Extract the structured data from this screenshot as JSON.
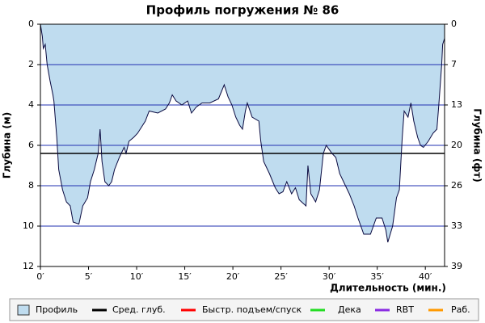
{
  "chart_data": {
    "type": "area",
    "title": "Профиль погружения № 86",
    "x_label": "Длительность (мин.)",
    "y_label": "Глубина (м)",
    "y2_label": "Глубина (фт)",
    "xlim": [
      0,
      42
    ],
    "ylim": [
      0,
      12
    ],
    "y2lim": [
      0,
      39.37
    ],
    "inverted_y": true,
    "grid": true,
    "xticks": [
      {
        "value": 0,
        "label": "0′"
      },
      {
        "value": 5,
        "label": "5′"
      },
      {
        "value": 10,
        "label": "10′"
      },
      {
        "value": 15,
        "label": "15′"
      },
      {
        "value": 20,
        "label": "20′"
      },
      {
        "value": 25,
        "label": "25′"
      },
      {
        "value": 30,
        "label": "30′"
      },
      {
        "value": 35,
        "label": "35′"
      },
      {
        "value": 40,
        "label": "40′"
      }
    ],
    "yticks": [
      0,
      2,
      4,
      6,
      8,
      10,
      12
    ],
    "y2ticks": [
      0,
      {
        "value": 6.56,
        "label": "7"
      },
      {
        "value": 13.12,
        "label": "13"
      },
      {
        "value": 19.69,
        "label": "20"
      },
      {
        "value": 26.25,
        "label": "26"
      },
      {
        "value": 32.81,
        "label": "33"
      },
      {
        "value": 39.37,
        "label": "39"
      }
    ],
    "series": [
      {
        "name": "Профиль",
        "color": "#bfdcef",
        "line_color": "#0a0a40",
        "x": [
          0,
          0.2,
          0.3,
          0.5,
          0.7,
          1.0,
          1.3,
          1.4,
          1.7,
          1.9,
          2.3,
          2.7,
          3.1,
          3.4,
          4.0,
          4.4,
          4.9,
          5.2,
          5.6,
          6.0,
          6.2,
          6.4,
          6.7,
          7.1,
          7.4,
          7.7,
          8.2,
          8.7,
          8.9,
          9.2,
          9.7,
          10.1,
          10.5,
          10.9,
          11.3,
          12.2,
          13.0,
          13.4,
          13.7,
          14.1,
          14.7,
          15.3,
          15.7,
          16.2,
          16.8,
          17.6,
          18.5,
          19.1,
          19.5,
          19.9,
          20.3,
          20.7,
          21.0,
          21.3,
          21.5,
          22.0,
          22.7,
          22.9,
          23.2,
          23.8,
          24.4,
          24.8,
          25.2,
          25.6,
          26.1,
          26.5,
          26.9,
          27.6,
          27.8,
          28.1,
          28.6,
          29.0,
          29.4,
          29.7,
          30.3,
          30.7,
          31.1,
          31.5,
          32.1,
          32.6,
          33.0,
          33.6,
          34.3,
          34.6,
          34.9,
          35.5,
          35.9,
          36.1,
          36.6,
          37.0,
          37.3,
          37.6,
          37.8,
          38.2,
          38.5,
          38.8,
          39.2,
          39.5,
          39.8,
          40.3,
          40.8,
          41.2,
          41.4,
          41.7,
          41.8,
          42.0
        ],
        "values": [
          0,
          0.6,
          1.2,
          1.0,
          2.0,
          2.8,
          3.5,
          3.8,
          5.6,
          7.2,
          8.2,
          8.8,
          9.0,
          9.8,
          9.9,
          9.0,
          8.6,
          7.8,
          7.2,
          6.4,
          5.2,
          6.8,
          7.8,
          8.0,
          7.8,
          7.2,
          6.6,
          6.1,
          6.4,
          5.8,
          5.6,
          5.4,
          5.1,
          4.8,
          4.3,
          4.4,
          4.2,
          3.9,
          3.5,
          3.8,
          4.0,
          3.8,
          4.4,
          4.1,
          3.9,
          3.9,
          3.7,
          3.0,
          3.6,
          4.0,
          4.6,
          5.0,
          5.2,
          4.3,
          3.9,
          4.6,
          4.8,
          5.8,
          6.8,
          7.4,
          8.1,
          8.4,
          8.3,
          7.8,
          8.4,
          8.1,
          8.7,
          9.0,
          7.0,
          8.4,
          8.8,
          8.2,
          6.4,
          6.0,
          6.4,
          6.6,
          7.4,
          7.8,
          8.4,
          9.0,
          9.6,
          10.4,
          10.4,
          10.0,
          9.6,
          9.6,
          10.2,
          10.8,
          10.0,
          8.6,
          8.2,
          5.6,
          4.3,
          4.6,
          3.9,
          4.8,
          5.6,
          6.0,
          6.1,
          5.8,
          5.4,
          5.2,
          4.0,
          2.0,
          1.0,
          0.7
        ]
      }
    ],
    "avg_depth": {
      "name": "Сред. глуб.",
      "color": "#000000",
      "value": 6.4
    },
    "legend": [
      {
        "name": "Быстр. подъем/спуск",
        "color": "#ff0000"
      },
      {
        "name": "Дека",
        "color": "#22dd22"
      },
      {
        "name": "RBT",
        "color": "#8a2be2"
      },
      {
        "name": "Раб.",
        "color": "#ff9900"
      }
    ]
  }
}
